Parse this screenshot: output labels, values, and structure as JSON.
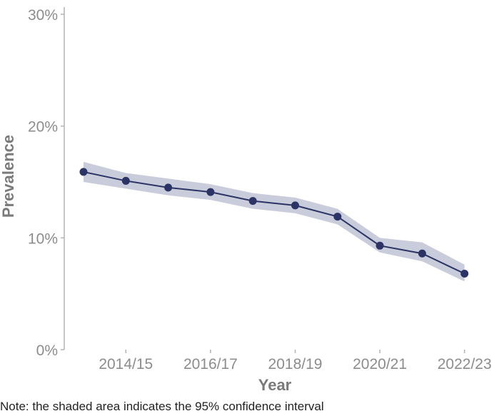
{
  "chart_data": {
    "type": "line",
    "xlabel": "Year",
    "ylabel": "Prevalence",
    "x": [
      "2013/14",
      "2014/15",
      "2015/16",
      "2016/17",
      "2017/18",
      "2018/19",
      "2019/20",
      "2020/21",
      "2021/22",
      "2022/23"
    ],
    "x_tick_labels": [
      "2014/15",
      "2016/17",
      "2018/19",
      "2020/21",
      "2022/23"
    ],
    "y_tick_labels": [
      "0%",
      "10%",
      "20%",
      "30%"
    ],
    "ylim": [
      0,
      30
    ],
    "series": [
      {
        "values": [
          15.9,
          15.1,
          14.5,
          14.1,
          13.3,
          12.9,
          11.9,
          9.3,
          8.6,
          6.8
        ],
        "ci_lower": [
          15.0,
          14.4,
          13.8,
          13.4,
          12.6,
          12.2,
          11.2,
          8.7,
          7.9,
          6.1
        ],
        "ci_upper": [
          16.8,
          15.8,
          15.3,
          14.8,
          14.0,
          13.6,
          12.6,
          10.0,
          9.6,
          7.6
        ],
        "line_color": "#2b3464",
        "band_color": "#c9ccdb"
      }
    ],
    "grid": false
  },
  "note": "Note: the shaded area indicates the 95% confidence interval"
}
